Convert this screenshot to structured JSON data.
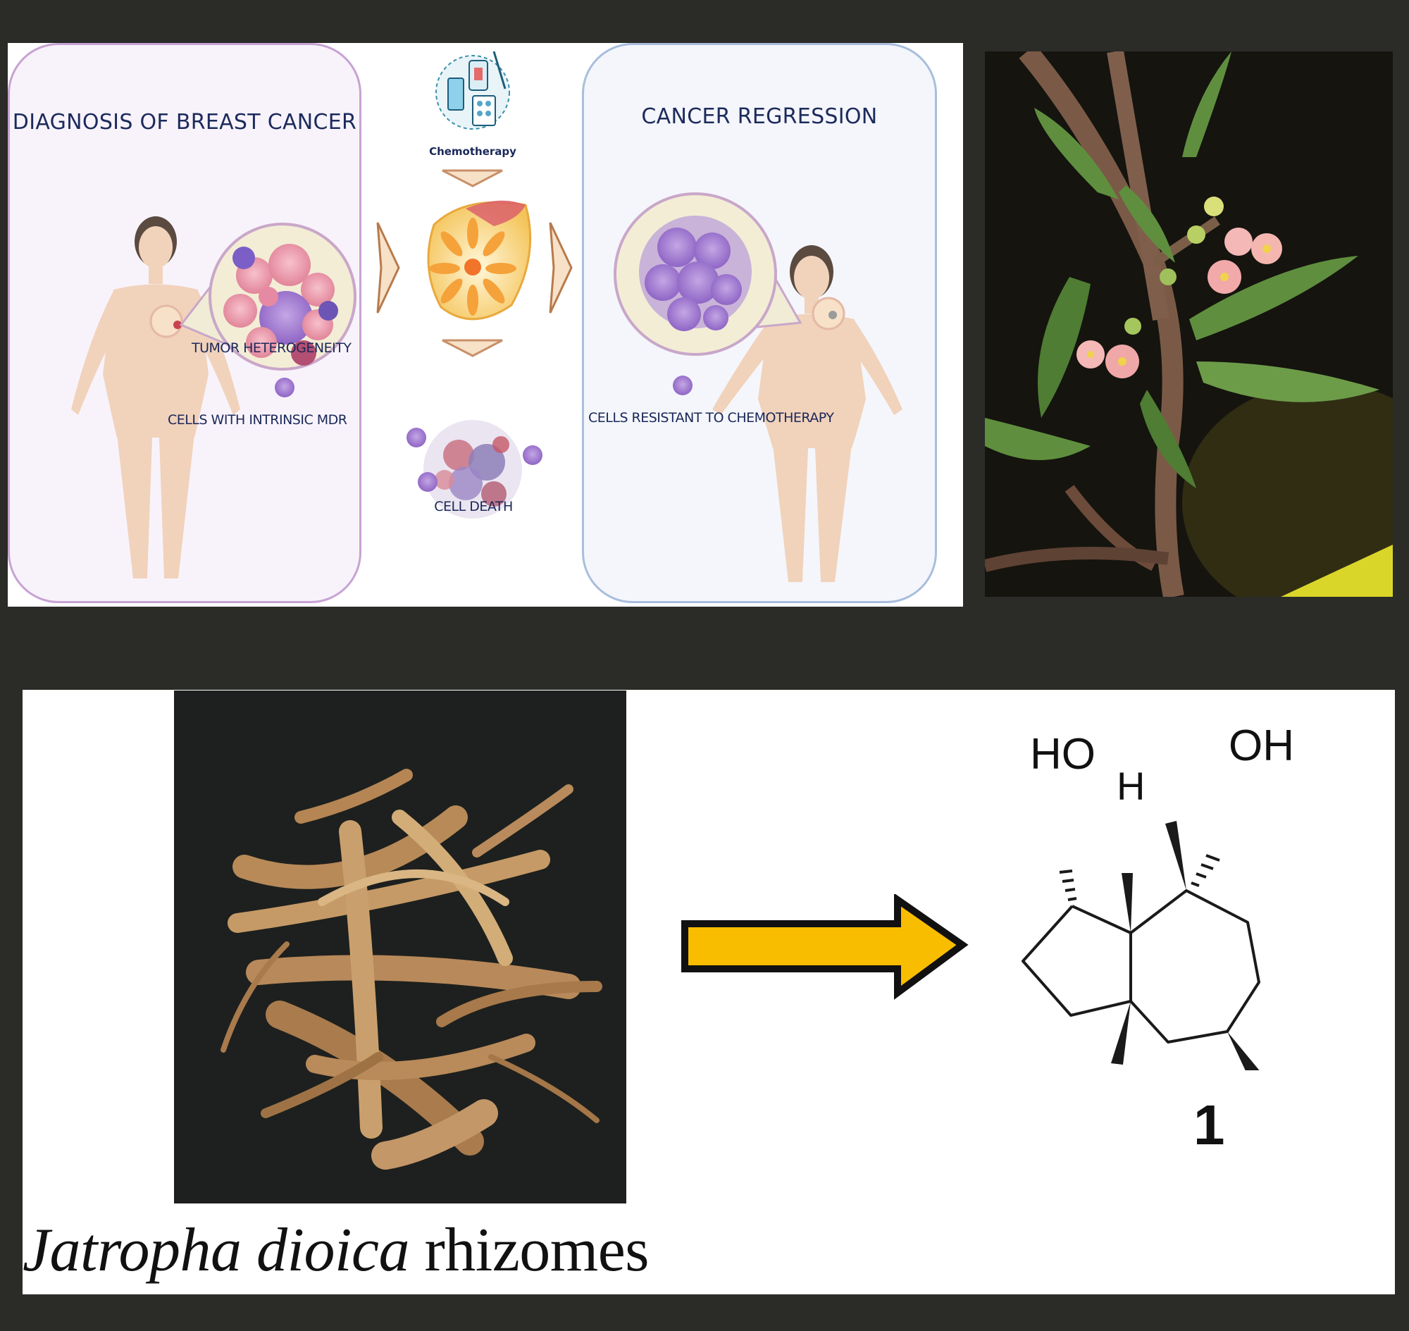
{
  "top": {
    "diagnosis_title": "DIAGNOSIS OF BREAST CANCER",
    "tumor_label": "TUMOR HETEROGENEITY",
    "mdr_label": "CELLS WITH INTRINSIC MDR",
    "chemo_label": "Chemotherapy",
    "cell_death_label": "CELL DEATH",
    "regression_title": "CANCER REGRESSION",
    "resistant_label": "CELLS RESISTANT TO CHEMOTHERAPY"
  },
  "bottom": {
    "species_italic": "Jatropha dioica",
    "species_rest": " rhizomes",
    "ho_label": "HO",
    "h_label": "H",
    "oh_label": "OH",
    "compound_number": "1"
  },
  "colors": {
    "arrow_fill": "#f9bd00",
    "diagnosis_border": "#c7a3d3",
    "regression_border": "#a9bedd",
    "label_text": "#1b2859"
  }
}
